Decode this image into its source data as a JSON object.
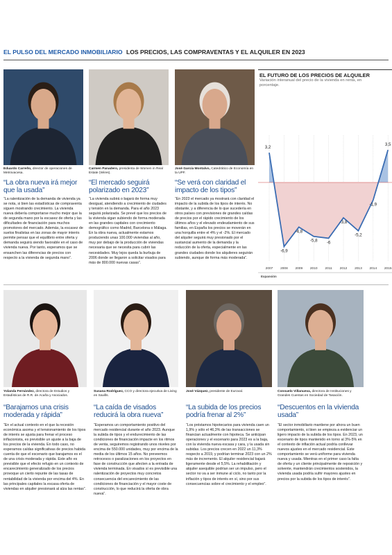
{
  "header": {
    "section": "EL PULSO DEL MERCADO INMOBILIARIO",
    "title": "LOS PRECIOS, LAS COMPRAVENTAS Y EL ALQUILER EN 2023"
  },
  "interviews": [
    {
      "name": "Eduardo Carreño,",
      "role": "director de operaciones de Metrovacesa.",
      "heading": "“La obra nueva irá mejor que la usada”",
      "body": "“La ralentización de la demanda de vivienda ya se nota, si bien las estadísticas de compraventa siguen mostrando crecimiento. La vivienda nueva debería comportarse mucho mejor que la de segunda mano por la escasez de oferta y las dificultades de financiación para muchos promotores del mercado. Además, la escasez de suelos finalistas en las zonas de mayor interés permite pensar que el equilibrio entre oferta y demanda seguirá siendo favorable en el caso de vivienda nueva. Por tanto, esperamos que se ensanchen las diferencias de precios con respecto a la vivienda de segunda mano”."
    },
    {
      "name": "Carmen Panadero,",
      "role": "presidenta de Women in Real Estate (Wires).",
      "heading": "“El mercado seguirá polarizado en 2023”",
      "body": "“La vivienda subirá o bajará de forma muy desigual, atendiendo a crecimiento de ciudades y tensión en la demanda. Para el año 2023 seguirá polarizada. Se prevé que los precios de la vivienda sigan subiendo de forma moderada en las grandes capitales con crecimiento demográfico como Madrid, Barcelona o Málaga. En la obra nueva, actualmente estamos produciendo unas 100.000 viviendas al año, muy por debajo de la producción de viviendas necesaria que se necesita para cubrir las necesidades. Muy lejos queda la burbuja de 2006 donde se llegaron a solicitar visados para más de 800.000 nuevas casas”."
    },
    {
      "name": "José García Montalvo,",
      "role": "Catedrático de Economía en la UPF.",
      "heading": "“Se verá con claridad el impacto de los tipos”",
      "body": "“En 2023 el mercado ya mostrará con claridad el impacto de la subida de los tipos de interés. No obstante, y a diferencia de lo que sucedería en otros países con previsiones de grandes caídas de precios por el rápido crecimiento de los últimos años y el elevado endeudamiento de sus familias, en España los precios se moverán en una horquilla entre el 4% y el -2%. El mercado del alquiler seguirá muy presionado por el sustancial aumento de la demanda y la reducción de la oferta, especialmente en las grandes ciudades donde los alquileres seguirán subiendo, aunque de forma más moderada”."
    },
    {
      "name": "Yolanda Fernández,",
      "role": "directora de Estudios y Estadísticas de R.R. de Acaña y Asociados.",
      "heading": "“Barajamos una crisis moderada y rápida”",
      "body": "“En el actual contexto en el que la recesión económica asoma y el tensionamiento de los tipos de interés se ajusta para frenar el proceso inflacionista, es previsible un ajuste a la baja de los precios de la vivienda. En todo caso, no esperamos caídas significativas de precios habida cuenta de que el escenario que barajamos es el de una crisis moderada y rápida. Este año es previsible que el efecto refugio en un contexto de encarecimiento generalizado de los precios provoque un cierto repunte de las tasas de rentabilidad de la vivienda por encima del 4%. En las principales capitales la escasa oferta de viviendas en alquiler presionará al alza las rentas”."
    },
    {
      "name": "Susana Rodríguez,",
      "role": "CCO y directora ejecutiva de Living en Savills.",
      "heading": "“La caída de visados reducirá la obra nueva”",
      "body": "“Esperamos un comportamiento positivo del mercado residencial durante el año 2023. Aunque la subida de tipos y el endurecimiento de las condiciones de financiación impacte en los ritmos de venta, seguiremos registrando unos niveles por encima de 550.000 unidades, muy por encima de la media de los últimos 15 años. No preveemos retrocesos o paralizaciones en los proyectos en fase de construcción que afecten a la entrada de vivienda terminada. En visados sí es previsible una ralentización de proyectos muy concretos consecuencia del encarecimiento de las condiciones de financiación y el mayor coste de construcción, lo que reducirá la oferta de obra nueva”."
    },
    {
      "name": "José Vázquez,",
      "role": "presidente de Euroval.",
      "heading": "“La subida de los precios podría frenar al 2%”",
      "body": "“Los préstamos hipotecarios para vivienda caen un 1,9% y sólo el 46,3% de las transacciones se financian actualmente con hipoteca. Se anticipan operaciones y el escenario para 2023 es a la baja, con la vivienda nueva escasa y cara, y la usada sin subidas. Los precios crecen en 2022 un 11,3% respecto a 2019, y podrían terminar 2023 con un 2% más de incremento. El alquiler residencial bajará ligeramente desde el 5,5%. La rehabilitación y alquiler asequible podrían ser un impulso, pero el sector no va a ser inmune al ciclo, no tanto por la inflación y tipos de interés en sí, sino por sus consecuencias sobre el crecimiento y el empleo”."
    },
    {
      "name": "Consuelo Villanueva,",
      "role": "directora de Instituciones y Grandes Cuentas en Sociedad de Tasación.",
      "heading": "“Descuentos en la vivienda usada”",
      "body": "“El sector inmobiliario mantiene por ahora un buen comportamiento, si bien se empieza a evidenciar un ligero impacto de la subida de los tipos. En 2023, un escenario de tipos mantenido en torno al 3%-5% en el contexto de inflación actual podría conllevar nuevos ajustes en el mercado residencial. Este comportamiento se verá uniforme para vivienda nueva y usada. Mientras en el primer caso la falta de oferta y un cliente principalmente de reposición y solvente, mantendrán crecimientos sostenidos, la vivienda usada podría sufrir mayores ajustes en precios por la subida de los tipos de interés”."
    }
  ],
  "chart_data": {
    "type": "area",
    "title": "EL FUTURO DE LOS PRECIOS DE ALQUILER",
    "subtitle": "Variación interanual del precio de la vivienda en renta, en porcentaje.",
    "source": "Expansión",
    "categories": [
      "2007",
      "2008",
      "2009",
      "2010",
      "2011",
      "2012",
      "2013",
      "2014",
      "2015"
    ],
    "values": [
      3.2,
      -6.9,
      -4.8,
      -5.8,
      -6,
      -3.8,
      -5.2,
      -1.9,
      3.5
    ],
    "value_labels": [
      "3,2",
      "-6,9",
      "-4,8",
      "-5,8",
      "-6",
      "-3,8",
      "-5,2",
      "-1,9",
      "3,5"
    ],
    "color": "#3b6db3",
    "positive_color": "#a9c2e3",
    "negative_color": "#f1d2d2"
  }
}
